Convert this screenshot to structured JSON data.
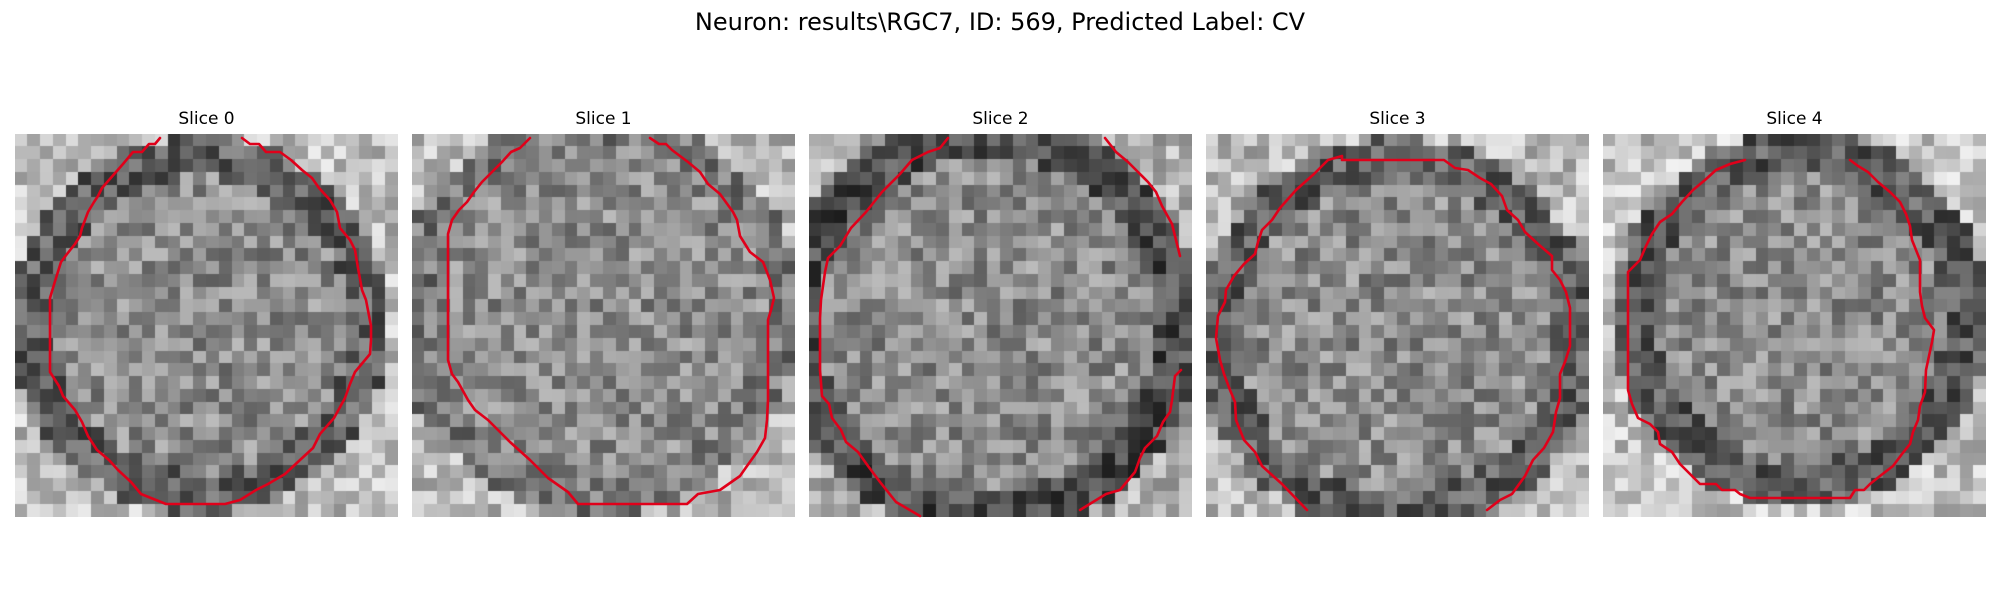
{
  "title": "Neuron: results\\RGC7, ID: 569, Predicted Label: CV",
  "panels": [
    {
      "title": "Slice 0"
    },
    {
      "title": "Slice 1"
    },
    {
      "title": "Slice 2"
    },
    {
      "title": "Slice 3"
    },
    {
      "title": "Slice 4"
    }
  ],
  "colors": {
    "contour": "#e0001a",
    "background": "#ffffff"
  },
  "image": {
    "grid_size": 30,
    "colormap": "gray"
  }
}
